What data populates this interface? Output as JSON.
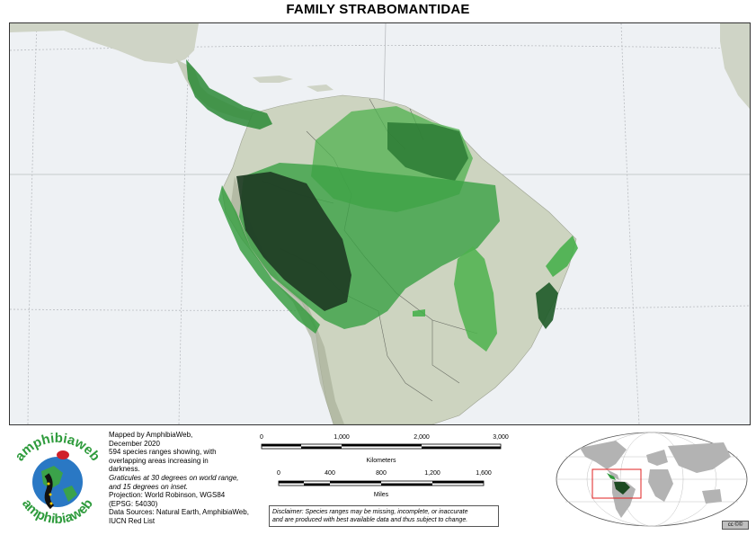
{
  "title": "FAMILY STRABOMANTIDAE",
  "logo": {
    "text_top": "amphibiaweb",
    "text_bottom": "amphibiaweb"
  },
  "credits": {
    "line1": "Mapped by AmphibiaWeb,",
    "line2": "December 2020",
    "line3": "594 species ranges showing, with",
    "line4": "overlapping areas increasing in",
    "line5": "darkness.",
    "line6": "Graticules at 30 degrees on world range,",
    "line7": "and 15 degrees on inset.",
    "line8": "Projection: World Robinson, WGS84",
    "line9": "(EPSG: 54030)",
    "line10": "Data Sources: Natural Earth, AmphibiaWeb,",
    "line11": "IUCN Red List"
  },
  "scale_km": {
    "ticks": [
      "0",
      "1,000",
      "2,000",
      "3,000"
    ],
    "unit": "Kilometers"
  },
  "scale_mi": {
    "ticks": [
      "0",
      "400",
      "800",
      "1,200",
      "1,600"
    ],
    "unit": "Miles"
  },
  "disclaimer": {
    "line1": "Disclaimer: Species ranges may be missing, incomplete, or inaccurate",
    "line2": "and are produced with best available data and thus subject to change."
  },
  "license_badge": "cc ©©",
  "colors": {
    "ocean": "#eef1f4",
    "land": "#cdd4c0",
    "range_light": "#5cbf5c",
    "range_mid": "#2f9a3a",
    "range_dark": "#1c4a22",
    "extent_box": "#e02020"
  }
}
